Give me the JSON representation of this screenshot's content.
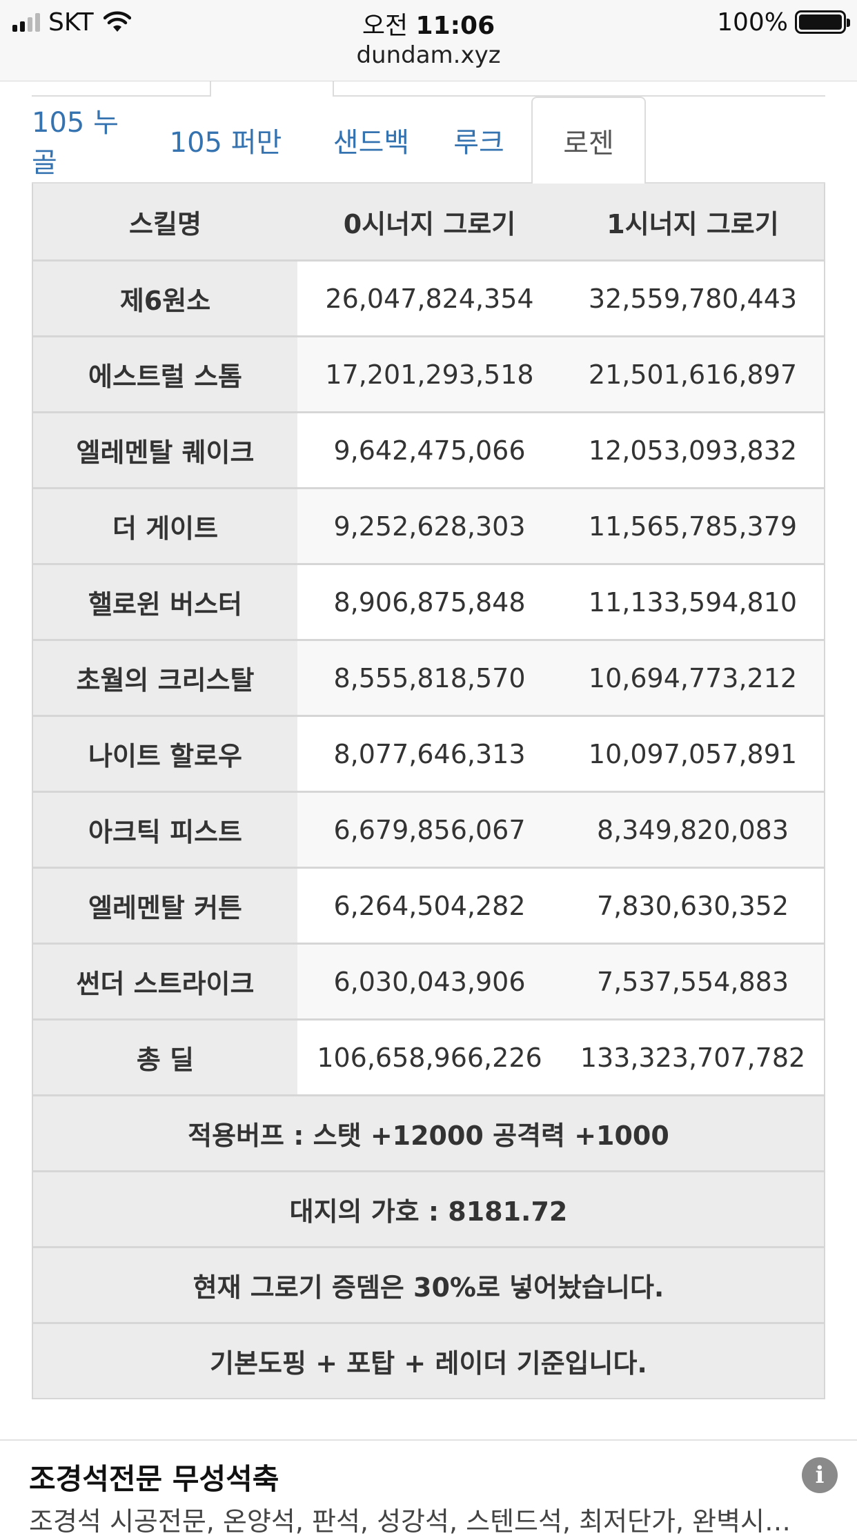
{
  "status_bar": {
    "carrier": "SKT",
    "time_prefix": "오전",
    "time": "11:06",
    "battery": "100%",
    "url": "dundam.xyz"
  },
  "tabs": [
    {
      "label": "105 누골",
      "active": false
    },
    {
      "label": "105 퍼만",
      "active": false
    },
    {
      "label": "샌드백",
      "active": false
    },
    {
      "label": "루크",
      "active": false
    },
    {
      "label": "로젠",
      "active": true
    }
  ],
  "table": {
    "headers": [
      "스킬명",
      "0시너지 그로기",
      "1시너지 그로기"
    ],
    "rows": [
      {
        "skill": "제6원소",
        "v0": "26,047,824,354",
        "v1": "32,559,780,443"
      },
      {
        "skill": "에스트럴 스톰",
        "v0": "17,201,293,518",
        "v1": "21,501,616,897"
      },
      {
        "skill": "엘레멘탈 퀘이크",
        "v0": "9,642,475,066",
        "v1": "12,053,093,832"
      },
      {
        "skill": "더 게이트",
        "v0": "9,252,628,303",
        "v1": "11,565,785,379"
      },
      {
        "skill": "핼로윈 버스터",
        "v0": "8,906,875,848",
        "v1": "11,133,594,810"
      },
      {
        "skill": "초월의 크리스탈",
        "v0": "8,555,818,570",
        "v1": "10,694,773,212"
      },
      {
        "skill": "나이트 할로우",
        "v0": "8,077,646,313",
        "v1": "10,097,057,891"
      },
      {
        "skill": "아크틱 피스트",
        "v0": "6,679,856,067",
        "v1": "8,349,820,083"
      },
      {
        "skill": "엘레멘탈 커튼",
        "v0": "6,264,504,282",
        "v1": "7,830,630,352"
      },
      {
        "skill": "썬더 스트라이크",
        "v0": "6,030,043,906",
        "v1": "7,537,554,883"
      },
      {
        "skill": "총 딜",
        "v0": "106,658,966,226",
        "v1": "133,323,707,782"
      }
    ],
    "notes": [
      "적용버프 : 스탯 +12000 공격력 +1000",
      "대지의 가호 : 8181.72",
      "현재 그로기 증뎀은 30%로 넣어놨습니다.",
      "기본도핑 + 포탑 + 레이더 기준입니다."
    ]
  },
  "ad": {
    "title": "조경석전문 무성석축",
    "description": "조경석 시공전문, 온양석, 판석, 성강석, 스텐드석, 최저단가, 완벽시…",
    "info_icon": "info-icon"
  }
}
